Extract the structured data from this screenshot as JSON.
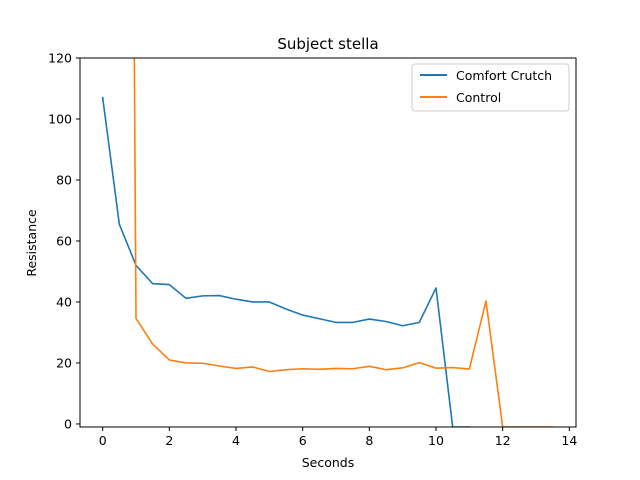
{
  "chart_data": {
    "type": "line",
    "title": "Subject stella",
    "xlabel": "Seconds",
    "ylabel": "Resistance",
    "xlim": [
      -0.68,
      14.2
    ],
    "ylim": [
      -1,
      120
    ],
    "xticks": [
      0,
      2,
      4,
      6,
      8,
      10,
      12,
      14
    ],
    "yticks": [
      0,
      20,
      40,
      60,
      80,
      100,
      120
    ],
    "grid": false,
    "legend_position": "upper right",
    "series": [
      {
        "name": "Comfort Crutch",
        "color": "#1f77b4",
        "x": [
          0,
          0.5,
          1,
          1.5,
          2,
          2.5,
          3,
          3.5,
          4,
          4.5,
          5,
          5.5,
          6,
          6.5,
          7,
          7.5,
          8,
          8.5,
          9,
          9.5,
          10,
          10.5,
          11
        ],
        "y": [
          107,
          65.5,
          52,
          46,
          45.7,
          41.2,
          42,
          42.1,
          40.9,
          40,
          40,
          37.7,
          35.7,
          34.5,
          33.3,
          33.3,
          34.4,
          33.6,
          32.2,
          33.3,
          44.6,
          -1,
          -1
        ]
      },
      {
        "name": "Control",
        "color": "#ff7f0e",
        "x": [
          0.95,
          1,
          1.5,
          2,
          2.5,
          3,
          3.5,
          4,
          4.5,
          5,
          5.5,
          6,
          6.5,
          7,
          7.5,
          8,
          8.5,
          9,
          9.5,
          10,
          10.5,
          11,
          11.5,
          12,
          12.5,
          13,
          13.5
        ],
        "y": [
          120,
          34.6,
          26.2,
          21,
          20,
          19.9,
          19,
          18.2,
          18.7,
          17.2,
          17.8,
          18.1,
          17.9,
          18.2,
          18.1,
          18.9,
          17.8,
          18.4,
          20.1,
          18.3,
          18.5,
          18,
          40.3,
          -1,
          -1,
          -1,
          -1
        ]
      }
    ]
  }
}
